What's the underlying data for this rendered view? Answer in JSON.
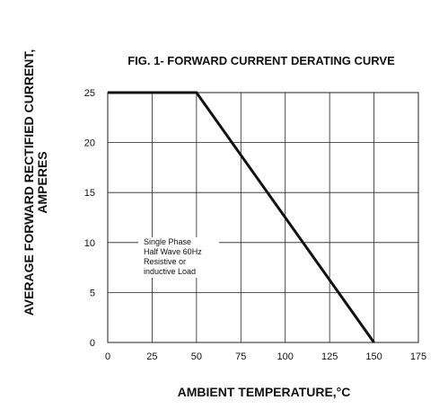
{
  "chart_data": {
    "type": "line",
    "title": "FIG. 1- FORWARD CURRENT DERATING CURVE",
    "xlabel": "AMBIENT TEMPERATURE,°C",
    "ylabel_line1": "AVERAGE FORWARD RECTIFIED CURRENT,",
    "ylabel_line2": "AMPERES",
    "xlim": [
      0,
      175
    ],
    "ylim": [
      0,
      25
    ],
    "x_ticks": [
      "0",
      "25",
      "50",
      "75",
      "100",
      "125",
      "150",
      "175"
    ],
    "y_ticks": [
      "0",
      "5",
      "10",
      "15",
      "20",
      "25"
    ],
    "grid": true,
    "annotation": [
      "Single Phase",
      "Half Wave 60Hz",
      "Resistive or",
      "inductive Load"
    ],
    "series": [
      {
        "x": [
          0,
          50,
          150
        ],
        "y": [
          25,
          25,
          0
        ],
        "color": "#111111"
      }
    ]
  }
}
